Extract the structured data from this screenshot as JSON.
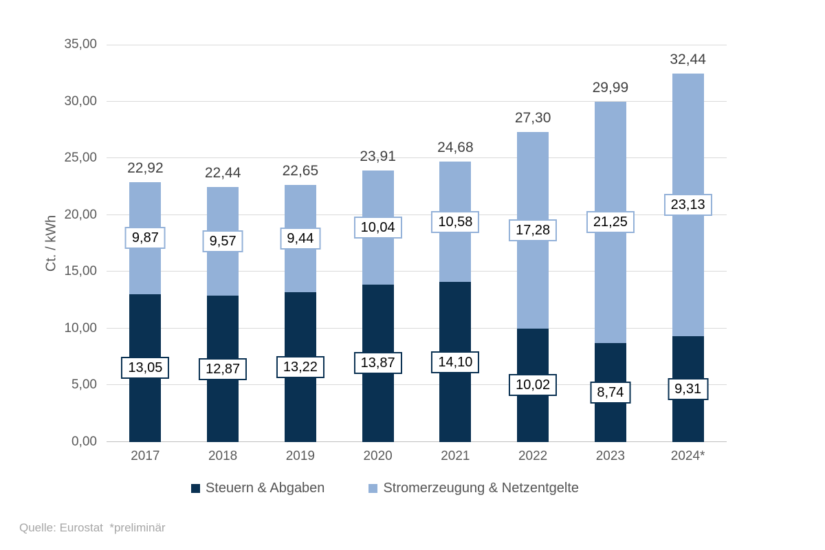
{
  "chart_data": {
    "type": "bar",
    "stacked": true,
    "title": "",
    "categories": [
      "2017",
      "2018",
      "2019",
      "2020",
      "2021",
      "2022",
      "2023",
      "2024*"
    ],
    "series": [
      {
        "name": "Steuern & Abgaben",
        "color": "#0a3152",
        "values": [
          13.05,
          12.87,
          13.22,
          13.87,
          14.1,
          10.02,
          8.74,
          9.31
        ]
      },
      {
        "name": "Stromerzeugung & Netzentgelte",
        "color": "#93b1d8",
        "values": [
          9.87,
          9.57,
          9.44,
          10.04,
          10.58,
          17.28,
          21.25,
          23.13
        ]
      }
    ],
    "totals": [
      22.92,
      22.44,
      22.65,
      23.91,
      24.68,
      27.3,
      29.99,
      32.44
    ],
    "xlabel": "",
    "ylabel": "Ct. / kWh",
    "ylim": [
      0,
      35
    ],
    "ytick_step": 5,
    "decimal_separator": ",",
    "grid": true,
    "legend_position": "bottom"
  },
  "colors": {
    "series_dark": "#0a3152",
    "series_light": "#93b1d8",
    "gridline": "#d9d9d9",
    "axis_baseline": "#bfbfbf",
    "axis_text": "#595959",
    "total_text": "#3f3f3f",
    "value_text": "#000000",
    "legend_text": "#545454",
    "footer_text": "#a6a6a6",
    "background": "#ffffff"
  },
  "footer": {
    "source": "Quelle: Eurostat  *preliminär"
  }
}
